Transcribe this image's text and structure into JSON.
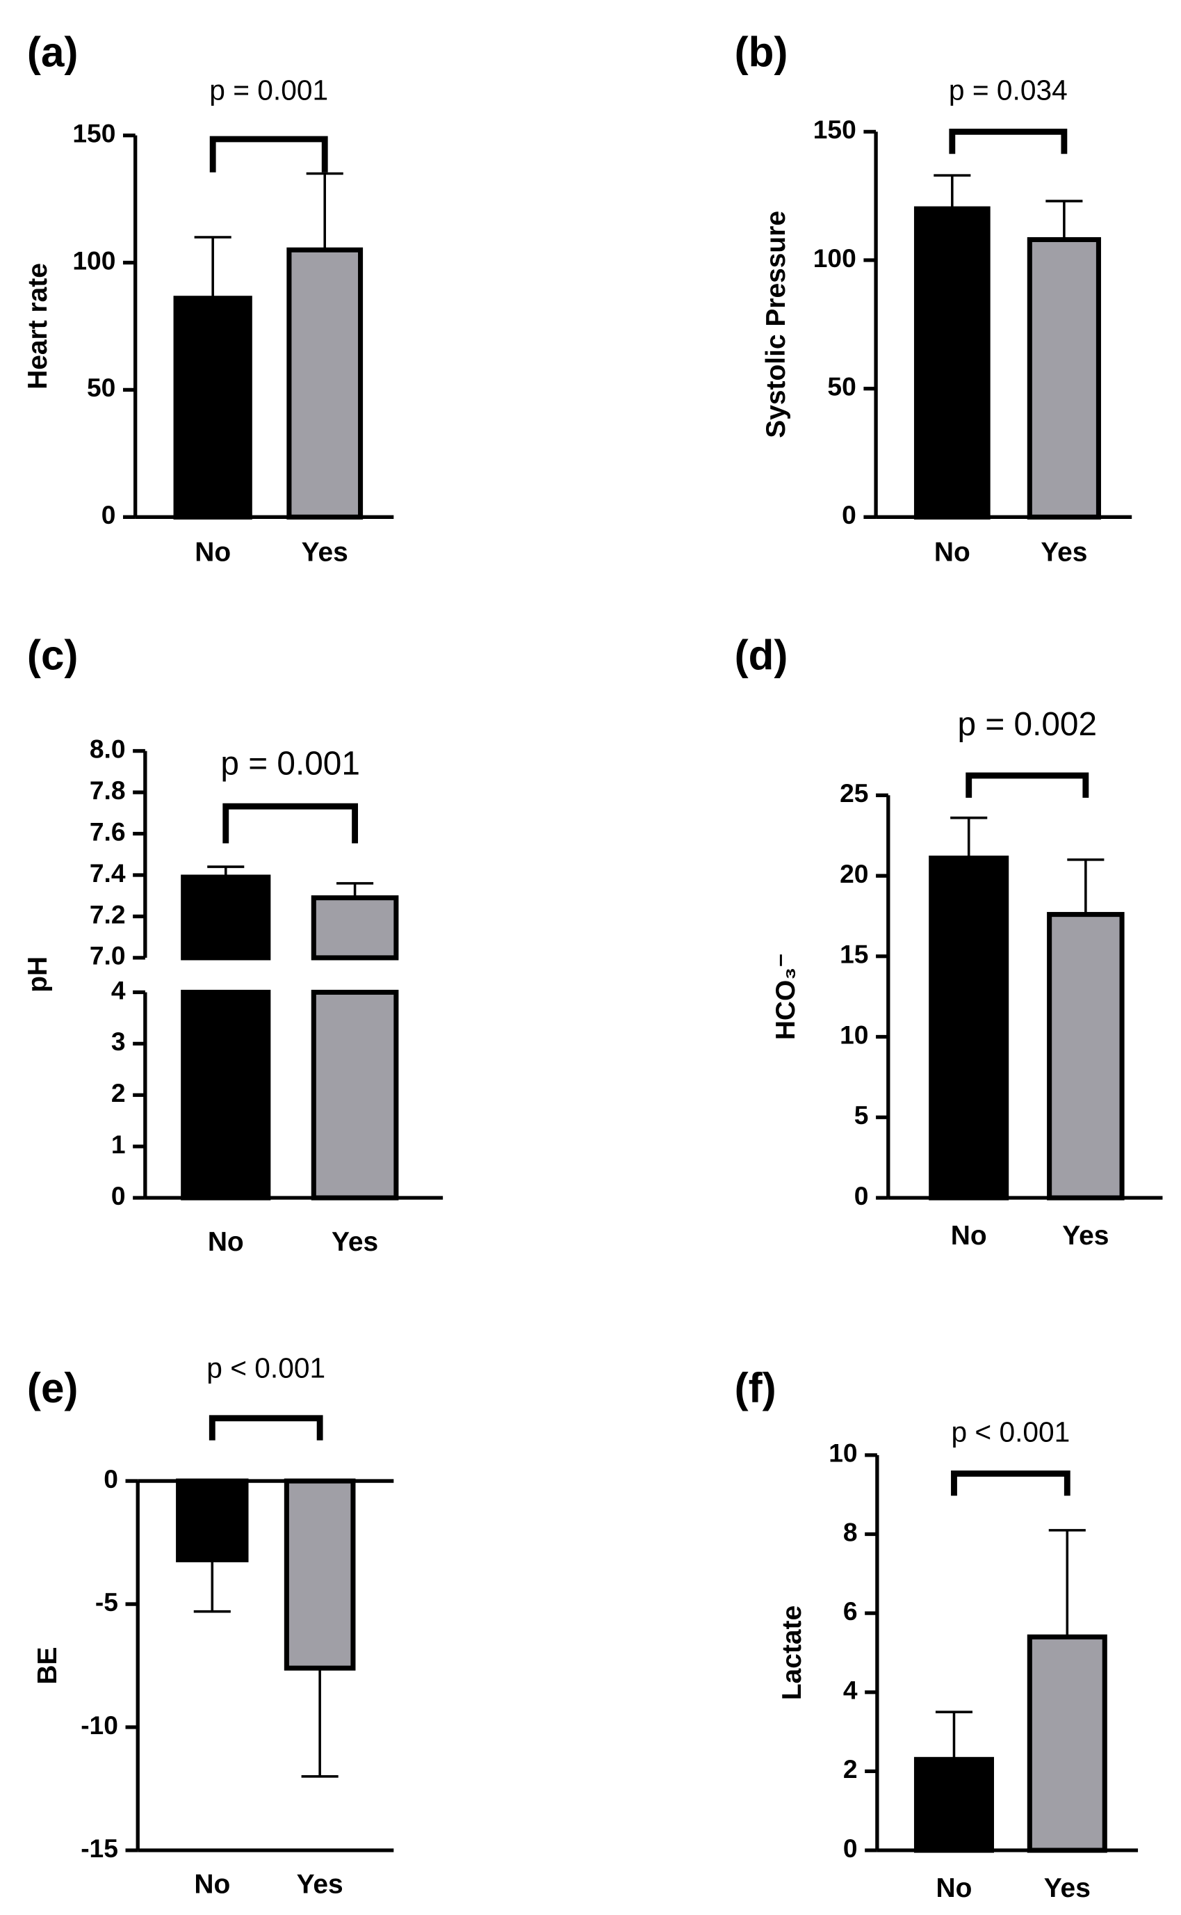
{
  "chart_data": [
    {
      "type": "bar",
      "panel_label": "(a)",
      "annotation": "p = 0.001",
      "ylabel": "Heart rate",
      "categories": [
        "No",
        "Yes"
      ],
      "values": [
        86,
        105
      ],
      "errors": [
        24,
        30
      ],
      "colors": [
        "#000000",
        "#a09fa6"
      ],
      "ylim": [
        0,
        150
      ],
      "yticks": [
        0,
        50,
        100,
        150
      ]
    },
    {
      "type": "bar",
      "panel_label": "(b)",
      "annotation": "p = 0.034",
      "ylabel": "Systolic Pressure",
      "categories": [
        "No",
        "Yes"
      ],
      "values": [
        120,
        108
      ],
      "errors": [
        13,
        15
      ],
      "colors": [
        "#000000",
        "#a09fa6"
      ],
      "ylim": [
        0,
        150
      ],
      "yticks": [
        0,
        50,
        100,
        150
      ]
    },
    {
      "type": "bar",
      "panel_label": "(c)",
      "annotation": "p = 0.001",
      "ylabel": "pH",
      "categories": [
        "No",
        "Yes"
      ],
      "values": [
        7.39,
        7.29
      ],
      "errors": [
        0.05,
        0.07
      ],
      "colors": [
        "#000000",
        "#a09fa6"
      ],
      "ylim": [
        0,
        8
      ],
      "ybreak": [
        4,
        7
      ],
      "yticks": [
        0,
        1,
        2,
        3,
        4,
        {
          "value": 7,
          "label": "7.0"
        },
        7.2,
        7.4,
        7.6,
        7.8,
        {
          "value": 8,
          "label": "8.0"
        }
      ]
    },
    {
      "type": "bar",
      "panel_label": "(d)",
      "annotation": "p = 0.002",
      "ylabel": "HCO₃⁻",
      "categories": [
        "No",
        "Yes"
      ],
      "values": [
        21.1,
        17.6
      ],
      "errors": [
        2.5,
        3.4
      ],
      "colors": [
        "#000000",
        "#a09fa6"
      ],
      "ylim": [
        0,
        25
      ],
      "yticks": [
        0,
        5,
        10,
        15,
        20,
        25
      ]
    },
    {
      "type": "bar",
      "panel_label": "(e)",
      "annotation": "p < 0.001",
      "ylabel": "BE",
      "categories": [
        "No",
        "Yes"
      ],
      "values": [
        -3.2,
        -7.6
      ],
      "errors": [
        2.1,
        4.4
      ],
      "colors": [
        "#000000",
        "#a09fa6"
      ],
      "ylim": [
        -15,
        0
      ],
      "yticks": [
        -15,
        -10,
        -5,
        0
      ]
    },
    {
      "type": "bar",
      "panel_label": "(f)",
      "annotation": "p < 0.001",
      "ylabel": "Lactate",
      "categories": [
        "No",
        "Yes"
      ],
      "values": [
        2.3,
        5.4
      ],
      "errors": [
        1.2,
        2.7
      ],
      "colors": [
        "#000000",
        "#a09fa6"
      ],
      "ylim": [
        0,
        10
      ],
      "yticks": [
        0,
        2,
        4,
        6,
        8,
        10
      ]
    }
  ]
}
